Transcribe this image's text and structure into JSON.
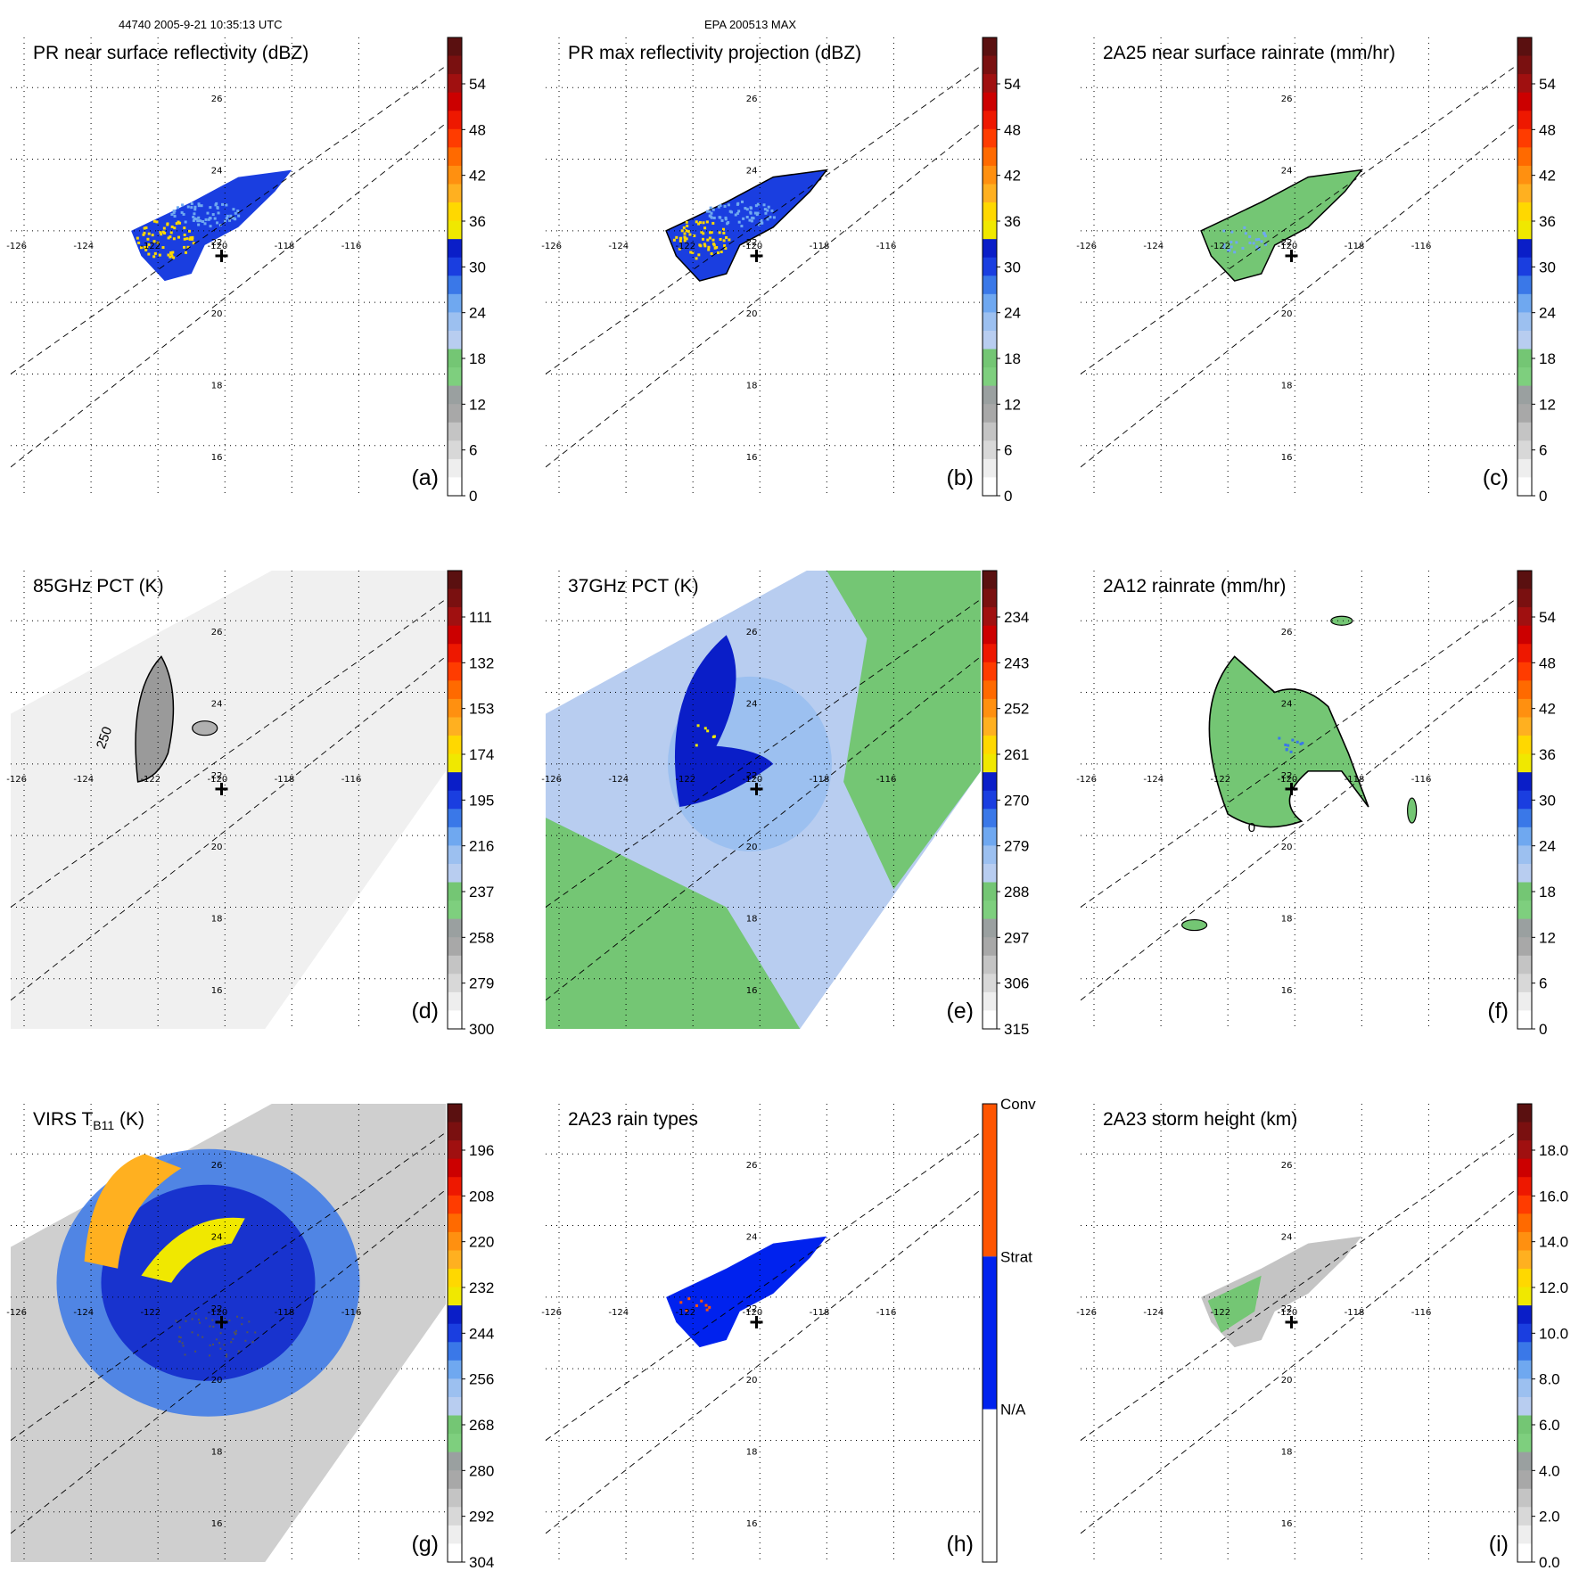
{
  "header": {
    "left": "44740 2005-9-21 10:35:13 UTC",
    "center": "EPA 200513 MAX"
  },
  "map": {
    "lon_range": [
      -126.4,
      -113.4
    ],
    "lat_range": [
      14.6,
      27.4
    ],
    "lon_ticks": [
      "-126",
      "-124",
      "-122",
      "-120",
      "-118",
      "-116"
    ],
    "lat_ticks": [
      "26",
      "24",
      "22",
      "20",
      "18",
      "16"
    ],
    "center_marker": {
      "lon": -120.1,
      "lat": 21.3
    }
  },
  "panels": [
    {
      "id": "a",
      "title": "PR near surface reflectivity (dBZ)",
      "letter": "(a)",
      "colorbar_labels": [
        "54",
        "48",
        "42",
        "36",
        "30",
        "24",
        "18",
        "12",
        "6",
        "0"
      ]
    },
    {
      "id": "b",
      "title": "PR max reflectivity projection (dBZ)",
      "letter": "(b)",
      "colorbar_labels": [
        "54",
        "48",
        "42",
        "36",
        "30",
        "24",
        "18",
        "12",
        "6",
        "0"
      ]
    },
    {
      "id": "c",
      "title": "2A25 near surface rainrate (mm/hr)",
      "letter": "(c)",
      "colorbar_labels": [
        "54",
        "48",
        "42",
        "36",
        "30",
        "24",
        "18",
        "12",
        "6",
        "0"
      ]
    },
    {
      "id": "d",
      "title": "85GHz PCT (K)",
      "letter": "(d)",
      "contour_label": "250",
      "colorbar_labels": [
        "111",
        "132",
        "153",
        "174",
        "195",
        "216",
        "237",
        "258",
        "279",
        "300"
      ]
    },
    {
      "id": "e",
      "title": "37GHz PCT (K)",
      "letter": "(e)",
      "colorbar_labels": [
        "234",
        "243",
        "252",
        "261",
        "270",
        "279",
        "288",
        "297",
        "306",
        "315"
      ]
    },
    {
      "id": "f",
      "title": "2A12 rainrate (mm/hr)",
      "letter": "(f)",
      "contour_label": "0",
      "colorbar_labels": [
        "54",
        "48",
        "42",
        "36",
        "30",
        "24",
        "18",
        "12",
        "6",
        "0"
      ]
    },
    {
      "id": "g",
      "title_main": "VIRS T",
      "title_sub": "B11",
      "title_tail": " (K)",
      "letter": "(g)",
      "colorbar_labels": [
        "196",
        "208",
        "220",
        "232",
        "244",
        "256",
        "268",
        "280",
        "292",
        "304"
      ]
    },
    {
      "id": "h",
      "title": "2A23 rain types",
      "letter": "(h)",
      "colorbar_labels": [
        "Conv",
        "Strat",
        "N/A"
      ]
    },
    {
      "id": "i",
      "title": "2A23 storm height (km)",
      "letter": "(i)",
      "colorbar_labels": [
        "18.0",
        "16.0",
        "14.0",
        "12.0",
        "10.0",
        "8.0",
        "6.0",
        "4.0",
        "2.0",
        "0.0"
      ]
    }
  ],
  "colors": {
    "scale": [
      "#ffffff",
      "#eeeeee",
      "#d8d8d8",
      "#c4c4c4",
      "#a8a8a8",
      "#9aa0a0",
      "#7ecf7e",
      "#74c674",
      "#b8cdf0",
      "#9cc0f0",
      "#6fa8f0",
      "#3a78e8",
      "#1a3ee0",
      "#0a1ec8",
      "#f0e800",
      "#ffd800",
      "#ffb020",
      "#ff9010",
      "#ff6a00",
      "#ff3c00",
      "#ee1800",
      "#cc0000",
      "#a01010",
      "#7a1010",
      "#5a1010"
    ],
    "raintype": {
      "conv": "#ff5500",
      "strat": "#0022ee",
      "na": "#ffffff"
    }
  },
  "chart_data": {
    "type": "heatmap",
    "panels_count": 9,
    "series": [
      {
        "name": "Conv",
        "value": 2
      },
      {
        "name": "Strat",
        "value": 1
      },
      {
        "name": "N/A",
        "value": 0
      }
    ]
  }
}
